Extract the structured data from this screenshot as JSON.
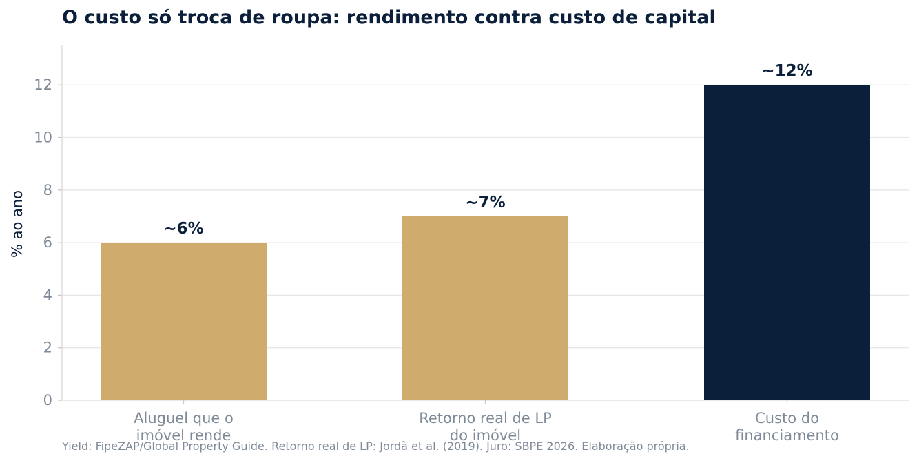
{
  "chart_data": {
    "type": "bar",
    "title": "O custo só troca de roupa: rendimento contra custo de capital",
    "ylabel": "% ao ano",
    "xlabel": "",
    "categories": [
      [
        "Aluguel que o",
        "imóvel rende"
      ],
      [
        "Retorno real de LP",
        "do imóvel"
      ],
      [
        "Custo do",
        "financiamento"
      ]
    ],
    "values": [
      6,
      7,
      12
    ],
    "data_labels": [
      "~6%",
      "~7%",
      "~12%"
    ],
    "bar_colors": [
      "#cfac6d",
      "#cfac6d",
      "#0b1f3a"
    ],
    "ylim": [
      0,
      13.5
    ],
    "yticks": [
      0,
      2,
      4,
      6,
      8,
      10,
      12
    ],
    "grid": true,
    "source": "Yield: FipeZAP/Global Property Guide. Retorno real de LP: Jordà et al. (2019). Juro: SBPE 2026. Elaboração própria."
  }
}
